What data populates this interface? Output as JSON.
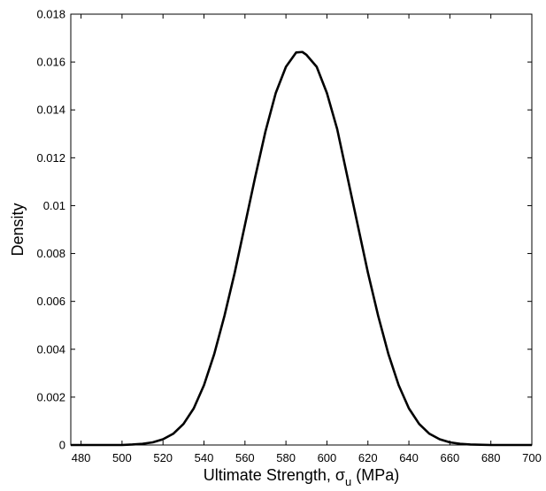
{
  "chart_data": {
    "type": "line",
    "title": "",
    "xlabel_main": "Ultimate Strength, ",
    "xlabel_symbol": "σ",
    "xlabel_subscript": "u",
    "xlabel_unit": " (MPa)",
    "ylabel": "Density",
    "xlim": [
      475,
      700
    ],
    "ylim": [
      0,
      0.018
    ],
    "xticks": [
      480,
      500,
      520,
      540,
      560,
      580,
      600,
      620,
      640,
      660,
      680,
      700
    ],
    "yticks": [
      0,
      0.002,
      0.004,
      0.006,
      0.008,
      0.01,
      0.012,
      0.014,
      0.016,
      0.018
    ],
    "ytick_labels": [
      "0",
      "0.002",
      "0.004",
      "0.006",
      "0.008",
      "0.01",
      "0.012",
      "0.014",
      "0.016",
      "0.018"
    ],
    "grid": false,
    "line_color": "#000000",
    "series": [
      {
        "x": [
          475,
          490,
          500,
          505,
          510,
          515,
          520,
          525,
          530,
          535,
          540,
          545,
          550,
          555,
          560,
          565,
          570,
          575,
          580,
          585,
          588,
          590,
          595,
          600,
          605,
          610,
          615,
          620,
          625,
          630,
          635,
          640,
          645,
          650,
          655,
          660,
          665,
          670,
          680,
          690,
          700
        ],
        "y": [
          0.0,
          0.0,
          0.0,
          2e-05,
          5e-05,
          0.00011,
          0.00024,
          0.00047,
          0.00088,
          0.00153,
          0.0025,
          0.0038,
          0.0054,
          0.0072,
          0.0092,
          0.0112,
          0.0131,
          0.0147,
          0.0158,
          0.0164,
          0.01642,
          0.0163,
          0.0158,
          0.0147,
          0.0132,
          0.0112,
          0.0092,
          0.0072,
          0.0054,
          0.0038,
          0.0025,
          0.00153,
          0.00088,
          0.00047,
          0.00024,
          0.00011,
          5e-05,
          2e-05,
          0.0,
          0.0,
          0.0
        ]
      }
    ]
  }
}
